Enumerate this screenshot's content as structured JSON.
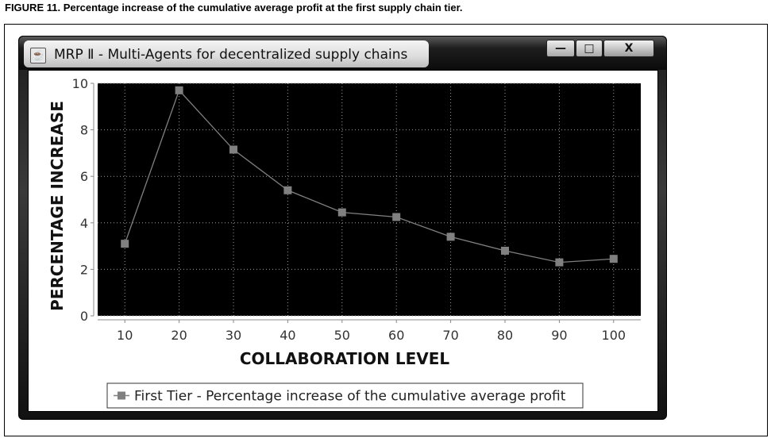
{
  "caption": "FIGURE 11. Percentage increase of the cumulative average profit at the first supply chain tier.",
  "window": {
    "title": "MRP Ⅱ - Multi-Agents for decentralized supply chains",
    "controls": {
      "minimize": "—",
      "maximize": "□",
      "close": "X"
    }
  },
  "icons": {
    "app": "java-cup-icon"
  },
  "colors": {
    "plot_background": "#000000",
    "series": "#808080",
    "grid": "#9a9a9a"
  },
  "chart_data": {
    "type": "line",
    "x": [
      10,
      20,
      30,
      40,
      50,
      60,
      70,
      80,
      90,
      100
    ],
    "series": [
      {
        "name": "First Tier - Percentage increase of the cumulative average profit",
        "values": [
          3.1,
          9.7,
          7.15,
          5.4,
          4.45,
          4.25,
          3.4,
          2.8,
          2.3,
          2.45
        ]
      }
    ],
    "xlabel": "COLLABORATION LEVEL",
    "ylabel": "PERCENTAGE INCREASE",
    "xticks": [
      "10",
      "20",
      "30",
      "40",
      "50",
      "60",
      "70",
      "80",
      "90",
      "100"
    ],
    "yticks": [
      "0",
      "2",
      "4",
      "6",
      "8",
      "10"
    ],
    "xlim": [
      5,
      105
    ],
    "ylim": [
      0,
      10
    ],
    "grid": true,
    "legend": "bottom-center"
  }
}
